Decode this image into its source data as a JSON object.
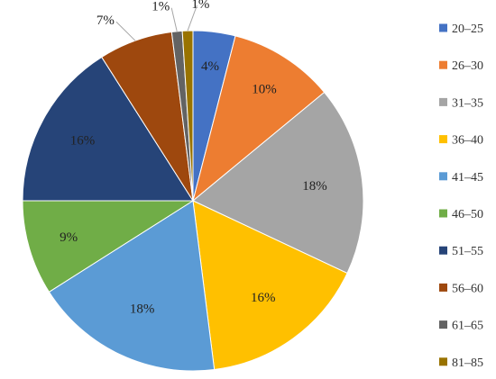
{
  "chart_data": {
    "type": "pie",
    "title": "",
    "categories": [
      "20–25",
      "26–30",
      "31–35",
      "36–40",
      "41–45",
      "46–50",
      "51–55",
      "56–60",
      "61–65",
      "81–85"
    ],
    "values": [
      4,
      10,
      18,
      16,
      18,
      9,
      16,
      7,
      1,
      1
    ],
    "labels": [
      "4%",
      "10%",
      "18%",
      "16%",
      "18%",
      "9%",
      "16%",
      "7%",
      "1%",
      "1%"
    ],
    "colors": [
      "#4472C4",
      "#ED7D31",
      "#A5A5A5",
      "#FFC000",
      "#5B9BD5",
      "#70AD47",
      "#264478",
      "#9E480E",
      "#636363",
      "#997300"
    ],
    "legend_position": "right",
    "start_angle": "top",
    "direction": "clockwise"
  }
}
